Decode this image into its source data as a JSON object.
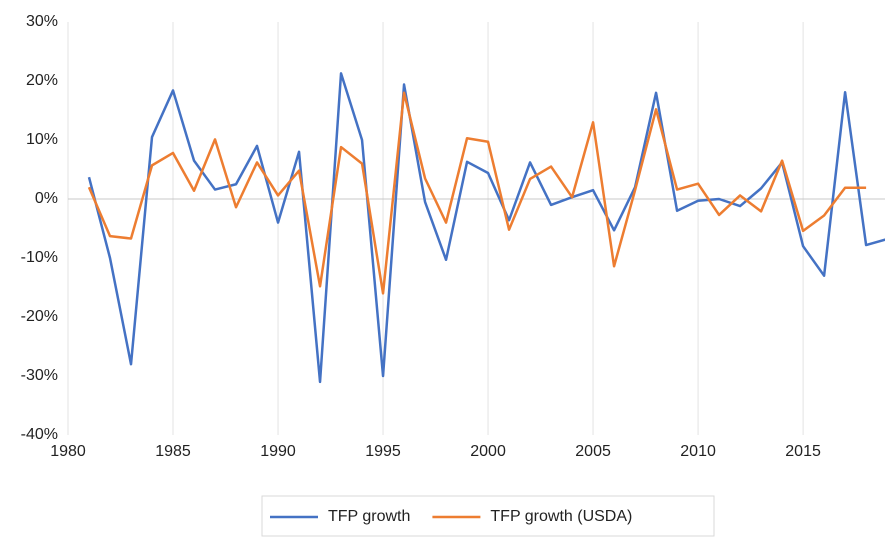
{
  "chart_data": {
    "type": "line",
    "x": [
      1981,
      1982,
      1983,
      1984,
      1985,
      1986,
      1987,
      1988,
      1989,
      1990,
      1991,
      1992,
      1993,
      1994,
      1995,
      1996,
      1997,
      1998,
      1999,
      2000,
      2001,
      2002,
      2003,
      2004,
      2005,
      2006,
      2007,
      2008,
      2009,
      2010,
      2011,
      2012,
      2013,
      2014,
      2015,
      2016,
      2017,
      2018,
      2019
    ],
    "series": [
      {
        "name": "TFP growth",
        "color": "#4472c4",
        "values": [
          3.7,
          -10,
          -28,
          10.5,
          18.4,
          6.5,
          1.6,
          2.5,
          9,
          -4,
          8,
          -31,
          21.3,
          10,
          -30,
          19.4,
          -0.5,
          -10.3,
          6.3,
          4.4,
          -3.6,
          6.2,
          -1,
          0.3,
          1.5,
          -5.3,
          2,
          18,
          -2,
          -0.3,
          0,
          -1.2,
          1.8,
          6.2,
          -8,
          -13,
          18.1,
          -7.8,
          -6.8
        ]
      },
      {
        "name": "TFP growth (USDA)",
        "color": "#ed7d31",
        "values": [
          2,
          -6.3,
          -6.7,
          5.7,
          7.8,
          1.4,
          10.1,
          -1.4,
          6.2,
          0.6,
          4.8,
          -14.8,
          8.8,
          6,
          -16,
          18,
          3.5,
          -4,
          10.3,
          9.7,
          -5.2,
          3.4,
          5.5,
          0.3,
          13,
          -11.4,
          1.5,
          15.2,
          1.6,
          2.6,
          -2.7,
          0.6,
          -2.1,
          6.5,
          -5.4,
          -2.8,
          1.9,
          1.9,
          null
        ]
      }
    ],
    "xlim": [
      1980,
      2019
    ],
    "xticks": [
      1980,
      1985,
      1990,
      1995,
      2000,
      2005,
      2010,
      2015
    ],
    "ylim": [
      -40,
      30
    ],
    "yticks": [
      {
        "value": -40,
        "label": "-40%"
      },
      {
        "value": -30,
        "label": "-30%"
      },
      {
        "value": -20,
        "label": "-20%"
      },
      {
        "value": -10,
        "label": "-10%"
      },
      {
        "value": 0,
        "label": "0%"
      },
      {
        "value": 10,
        "label": "10%"
      },
      {
        "value": 20,
        "label": "20%"
      },
      {
        "value": 30,
        "label": "30%"
      }
    ],
    "grid": "x",
    "legend": "bottom"
  }
}
